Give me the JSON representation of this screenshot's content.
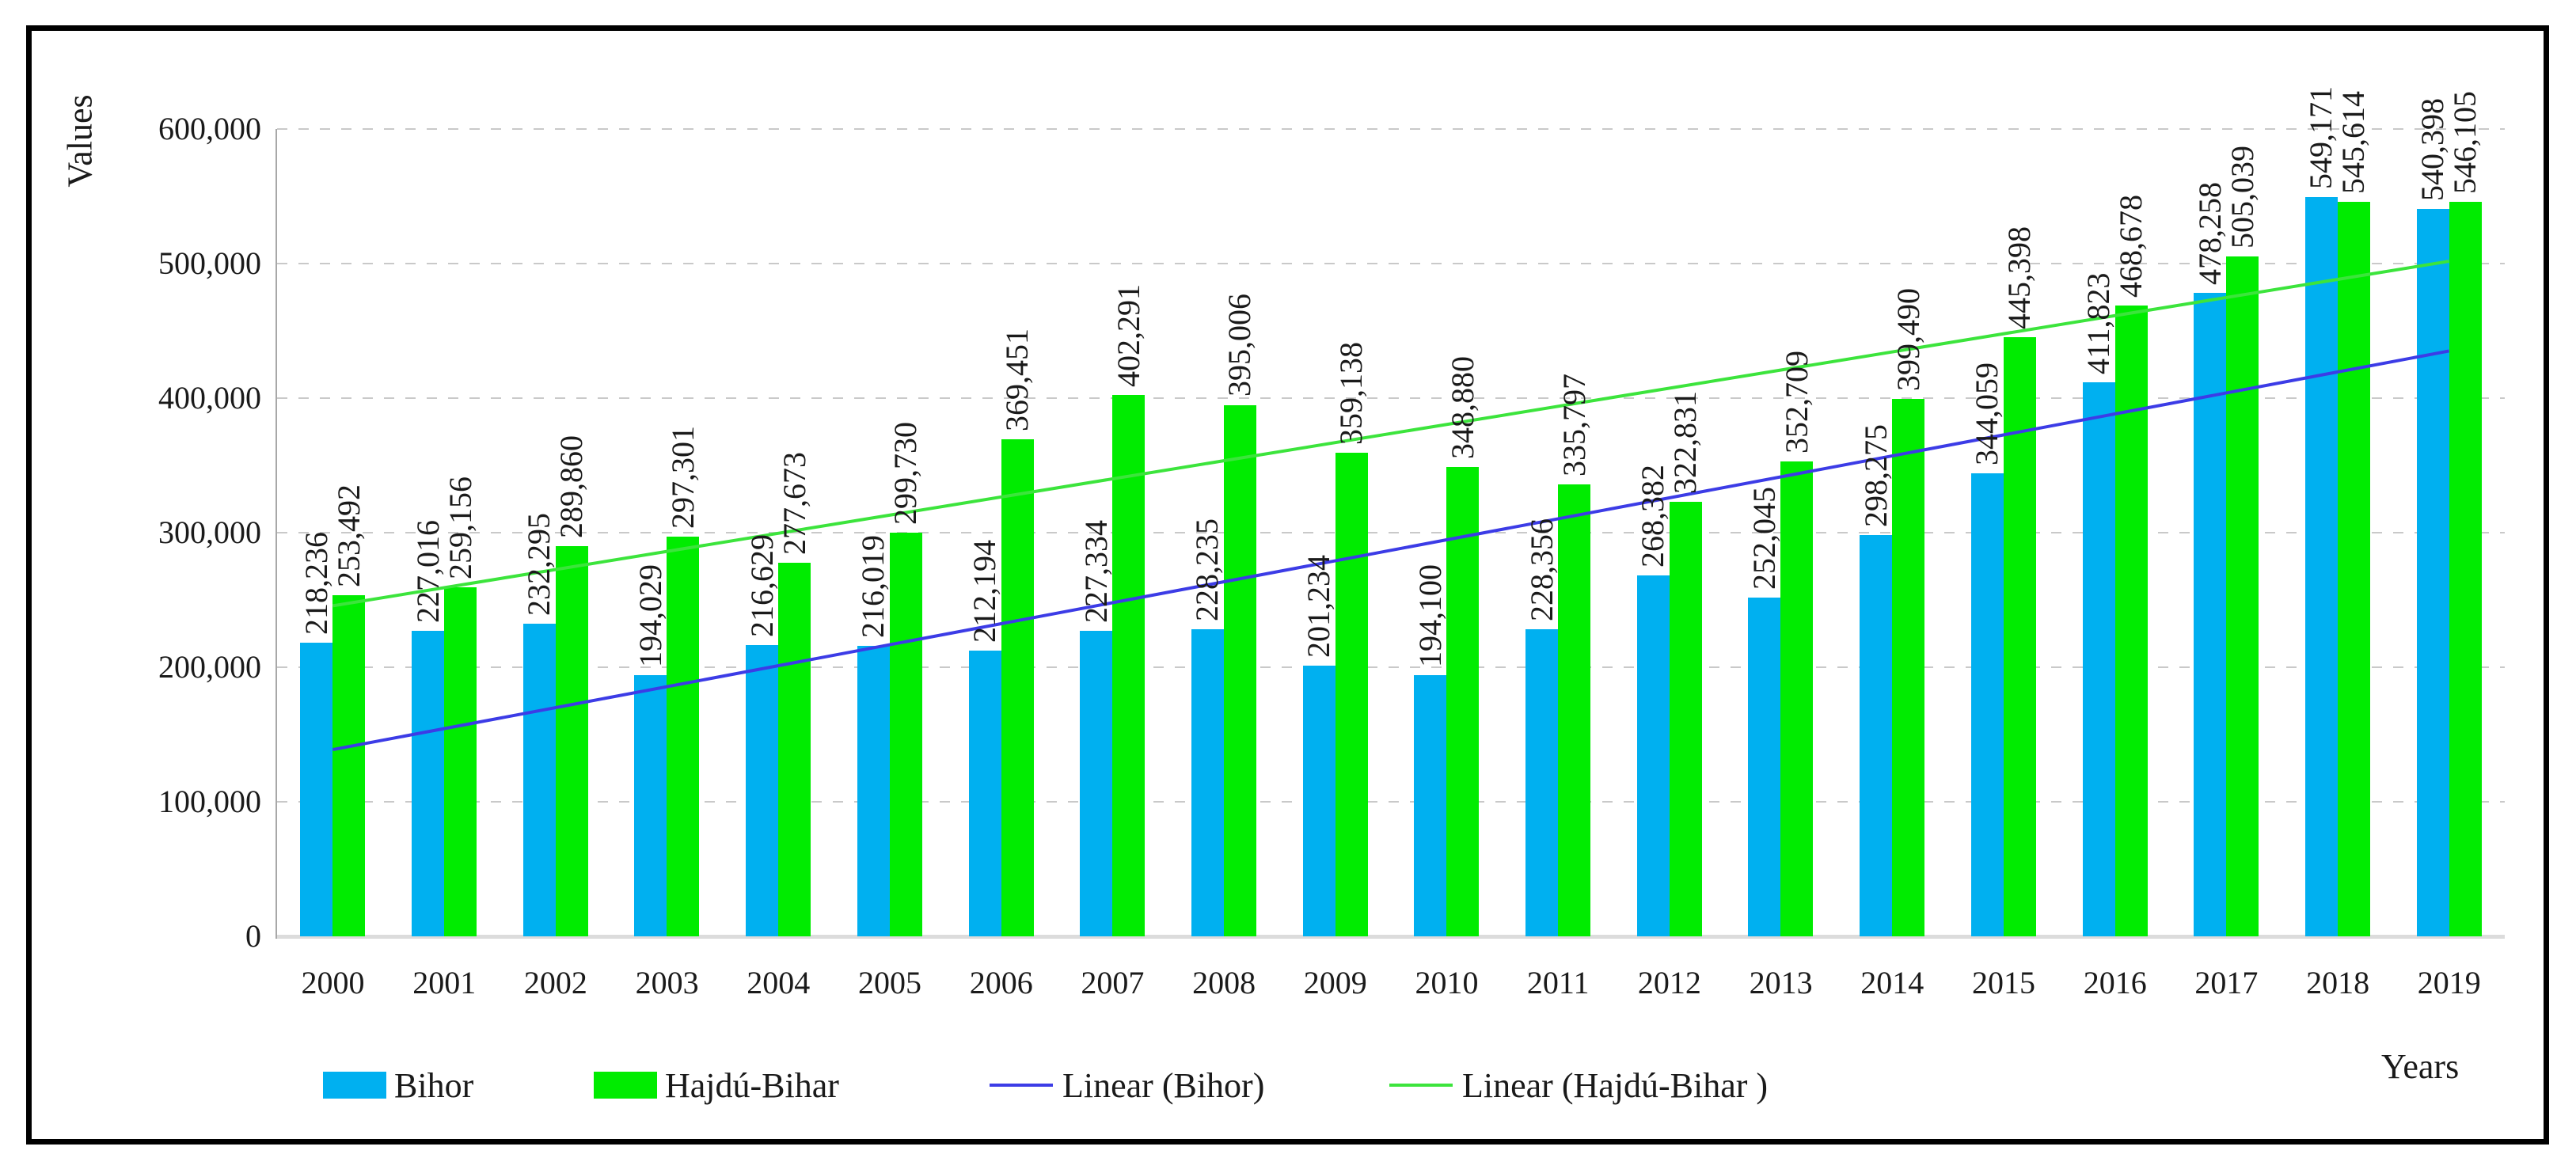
{
  "figure": {
    "y_axis_title": "Values",
    "x_axis_title": "Years"
  },
  "chart_data": {
    "type": "bar",
    "title": "",
    "xlabel": "Years",
    "ylabel": "Values",
    "ylim": [
      0,
      600000
    ],
    "grid": "horizontal dashed",
    "legend_position": "bottom",
    "value_labels": "rotated 90deg above bars, thousands-separated",
    "categories": [
      "2000",
      "2001",
      "2002",
      "2003",
      "2004",
      "2005",
      "2006",
      "2007",
      "2008",
      "2009",
      "2010",
      "2011",
      "2012",
      "2013",
      "2014",
      "2015",
      "2016",
      "2017",
      "2018",
      "2019"
    ],
    "series": [
      {
        "name": "Bihor",
        "color": "#00B0F0",
        "values": [
          218236,
          227016,
          232295,
          194029,
          216629,
          216019,
          212194,
          227334,
          228235,
          201234,
          194100,
          228356,
          268382,
          252045,
          298275,
          344059,
          411823,
          478258,
          549171,
          540398
        ]
      },
      {
        "name": "Hajdú-Bihar",
        "color": "#00EC00",
        "values": [
          253492,
          259156,
          289860,
          297301,
          277673,
          299730,
          369451,
          402291,
          395006,
          359138,
          348880,
          335797,
          322831,
          352709,
          399490,
          445398,
          468678,
          505039,
          545614,
          546105
        ]
      }
    ],
    "trendlines": [
      {
        "name": "Linear (Bihor)",
        "color": "#3C3CE6",
        "start_value": 138777,
        "end_value": 435033
      },
      {
        "name": "Linear (Hajdú-Bihar )",
        "color": "#3CE43C",
        "start_value": 245643,
        "end_value": 501721
      }
    ],
    "y_ticks": [
      "0",
      "100,000",
      "200,000",
      "300,000",
      "400,000",
      "500,000",
      "600,000"
    ]
  },
  "legend": {
    "items": [
      {
        "label": "Bihor",
        "marker": "square",
        "color": "#00B0F0"
      },
      {
        "label": "Hajdú-Bihar",
        "marker": "square",
        "color": "#00EC00"
      },
      {
        "label": "Linear (Bihor)",
        "marker": "line",
        "color": "#3C3CE6"
      },
      {
        "label": "Linear (Hajdú-Bihar )",
        "marker": "line",
        "color": "#3CE43C"
      }
    ]
  }
}
